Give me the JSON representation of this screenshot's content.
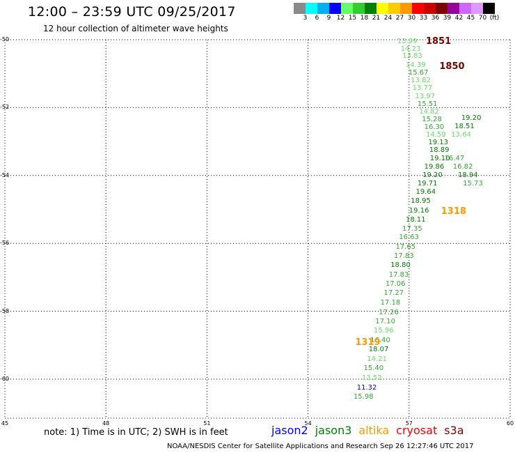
{
  "header": {
    "title": "12:00  –  23:59 UTC 09/25/2017",
    "subtitle": "12 hour collection of altimeter wave heights"
  },
  "color_scale": {
    "swatches": [
      "#8a8a8a",
      "#00ffff",
      "#00b0f0",
      "#0000ff",
      "#66ff66",
      "#33cc33",
      "#008000",
      "#ffff00",
      "#ffcc00",
      "#ff9900",
      "#ff0000",
      "#cc0000",
      "#800000",
      "#990099",
      "#cc66ff",
      "#dd99ff",
      "#000000"
    ],
    "labels": [
      "3",
      "6",
      "9",
      "12",
      "15",
      "18",
      "21",
      "24",
      "27",
      "30",
      "33",
      "36",
      "39",
      "42",
      "45",
      "70",
      "(ft)"
    ]
  },
  "axes": {
    "lat_labels": [
      "-50",
      "-52",
      "-54",
      "-56",
      "-58",
      "-60"
    ],
    "lon_labels": [
      "45",
      "48",
      "51",
      "54",
      "57",
      "60"
    ]
  },
  "observations": [
    {
      "value": "13.99",
      "lon": 56.65,
      "lat": -50.0,
      "color": "#66dd66"
    },
    {
      "value": "14.23",
      "lon": 56.75,
      "lat": -50.22,
      "color": "#66dd66"
    },
    {
      "value": "13.83",
      "lon": 56.8,
      "lat": -50.44,
      "color": "#66dd66"
    },
    {
      "value": "14.39",
      "lon": 56.9,
      "lat": -50.7,
      "color": "#66dd66"
    },
    {
      "value": "15.67",
      "lon": 56.98,
      "lat": -50.92,
      "color": "#33aa33"
    },
    {
      "value": "13.82",
      "lon": 57.05,
      "lat": -51.14,
      "color": "#66dd66"
    },
    {
      "value": "13.77",
      "lon": 57.1,
      "lat": -51.38,
      "color": "#66dd66"
    },
    {
      "value": "13.97",
      "lon": 57.18,
      "lat": -51.62,
      "color": "#66dd66"
    },
    {
      "value": "15.51",
      "lon": 57.25,
      "lat": -51.84,
      "color": "#33aa33"
    },
    {
      "value": "14.82",
      "lon": 57.3,
      "lat": -52.07,
      "color": "#66dd66"
    },
    {
      "value": "15.28",
      "lon": 57.38,
      "lat": -52.3,
      "color": "#33aa33"
    },
    {
      "value": "16.30",
      "lon": 57.45,
      "lat": -52.53,
      "color": "#33aa33"
    },
    {
      "value": "14.59",
      "lon": 57.5,
      "lat": -52.76,
      "color": "#66dd66"
    },
    {
      "value": "19.13",
      "lon": 57.57,
      "lat": -52.98,
      "color": "#008000"
    },
    {
      "value": "18.89",
      "lon": 57.6,
      "lat": -53.2,
      "color": "#008000"
    },
    {
      "value": "19.10",
      "lon": 57.62,
      "lat": -53.45,
      "color": "#008000"
    },
    {
      "value": "19.86",
      "lon": 57.45,
      "lat": -53.7,
      "color": "#008000"
    },
    {
      "value": "19.20",
      "lon": 57.4,
      "lat": -53.94,
      "color": "#008000"
    },
    {
      "value": "19.71",
      "lon": 57.25,
      "lat": -54.18,
      "color": "#008000"
    },
    {
      "value": "19.64",
      "lon": 57.2,
      "lat": -54.44,
      "color": "#008000"
    },
    {
      "value": "18.95",
      "lon": 57.05,
      "lat": -54.7,
      "color": "#008000"
    },
    {
      "value": "19.16",
      "lon": 57.0,
      "lat": -54.98,
      "color": "#008000"
    },
    {
      "value": "18.11",
      "lon": 56.9,
      "lat": -55.25,
      "color": "#008000"
    },
    {
      "value": "17.35",
      "lon": 56.8,
      "lat": -55.52,
      "color": "#33aa33"
    },
    {
      "value": "16.63",
      "lon": 56.7,
      "lat": -55.78,
      "color": "#33aa33"
    },
    {
      "value": "17.65",
      "lon": 56.6,
      "lat": -56.05,
      "color": "#33aa33"
    },
    {
      "value": "17.83",
      "lon": 56.55,
      "lat": -56.32,
      "color": "#33aa33"
    },
    {
      "value": "18.80",
      "lon": 56.45,
      "lat": -56.6,
      "color": "#008000"
    },
    {
      "value": "17.83",
      "lon": 56.4,
      "lat": -56.87,
      "color": "#33aa33"
    },
    {
      "value": "17.06",
      "lon": 56.3,
      "lat": -57.15,
      "color": "#33aa33"
    },
    {
      "value": "17.27",
      "lon": 56.25,
      "lat": -57.42,
      "color": "#33aa33"
    },
    {
      "value": "17.18",
      "lon": 56.15,
      "lat": -57.7,
      "color": "#33aa33"
    },
    {
      "value": "17.26",
      "lon": 56.1,
      "lat": -57.98,
      "color": "#33aa33"
    },
    {
      "value": "17.10",
      "lon": 56.0,
      "lat": -58.25,
      "color": "#33aa33"
    },
    {
      "value": "15.96",
      "lon": 55.95,
      "lat": -58.53,
      "color": "#66dd66"
    },
    {
      "value": "16.40",
      "lon": 55.85,
      "lat": -58.8,
      "color": "#33aa33"
    },
    {
      "value": "18.07",
      "lon": 55.8,
      "lat": -59.08,
      "color": "#008000"
    },
    {
      "value": "14.21",
      "lon": 55.75,
      "lat": -59.36,
      "color": "#66dd66"
    },
    {
      "value": "15.40",
      "lon": 55.65,
      "lat": -59.64,
      "color": "#33aa33"
    },
    {
      "value": "13.52",
      "lon": 55.6,
      "lat": -59.92,
      "color": "#66dd66"
    },
    {
      "value": "11.32",
      "lon": 55.45,
      "lat": -60.2,
      "color": "#0000cc"
    },
    {
      "value": "15.98",
      "lon": 55.35,
      "lat": -60.48,
      "color": "#33aa33"
    },
    {
      "value": "19.20",
      "lon": 58.55,
      "lat": -52.25,
      "color": "#008000"
    },
    {
      "value": "18.51",
      "lon": 58.35,
      "lat": -52.5,
      "color": "#008000"
    },
    {
      "value": "13.64",
      "lon": 58.25,
      "lat": -52.76,
      "color": "#66dd66"
    },
    {
      "value": "16.47",
      "lon": 58.05,
      "lat": -53.45,
      "color": "#33aa33"
    },
    {
      "value": "16.82",
      "lon": 58.3,
      "lat": -53.7,
      "color": "#33aa33"
    },
    {
      "value": "18.94",
      "lon": 58.45,
      "lat": -53.94,
      "color": "#008000"
    },
    {
      "value": "15.73",
      "lon": 58.6,
      "lat": -54.18,
      "color": "#33aa33"
    }
  ],
  "pass_labels": [
    {
      "text": "1851",
      "lon": 57.5,
      "lat": -49.98,
      "color": "#800000"
    },
    {
      "text": "1850",
      "lon": 57.9,
      "lat": -50.72,
      "color": "#800000"
    },
    {
      "text": "1318",
      "lon": 57.95,
      "lat": -55.0,
      "color": "#ff9900"
    },
    {
      "text": "1319",
      "lon": 55.4,
      "lat": -58.85,
      "color": "#ff9900"
    }
  ],
  "note": "note:  1) Time is in UTC;  2) SWH is in feet",
  "legend": [
    {
      "text": "jason2",
      "color": "#0000ff"
    },
    {
      "text": "jason3",
      "color": "#008000"
    },
    {
      "text": "altika",
      "color": "#ff9900"
    },
    {
      "text": "cryosat",
      "color": "#ff0000"
    },
    {
      "text": "s3a",
      "color": "#800000"
    }
  ],
  "footer": "NOAA/NESDIS Center for Satellite Applications and Research     Sep 26 12:27:46 UTC 2017"
}
